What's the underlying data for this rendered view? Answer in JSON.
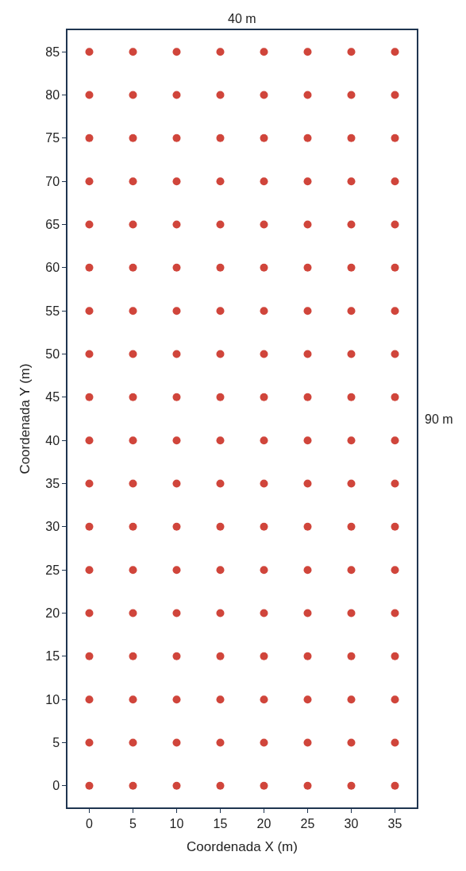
{
  "chart_data": {
    "type": "scatter",
    "xlabel": "Coordenada X (m)",
    "ylabel": "Coordenada Y (m)",
    "annotations": [
      "40 m",
      "90 m"
    ],
    "xlim": [
      -2.5,
      37.5
    ],
    "xticks": [
      0,
      5,
      10,
      15,
      20,
      25,
      30,
      35
    ],
    "ylim": [
      -2.5,
      87.5
    ],
    "yticks": [
      0,
      5,
      10,
      15,
      20,
      25,
      30,
      35,
      40,
      45,
      50,
      55,
      60,
      65,
      70,
      75,
      80,
      85
    ],
    "marker": "circle",
    "series": [
      {
        "color": "#d0453b",
        "x": [
          0,
          5,
          10,
          15,
          20,
          25,
          30,
          35,
          0,
          5,
          10,
          15,
          20,
          25,
          30,
          35,
          0,
          5,
          10,
          15,
          20,
          25,
          30,
          35,
          0,
          5,
          10,
          15,
          20,
          25,
          30,
          35,
          0,
          5,
          10,
          15,
          20,
          25,
          30,
          35,
          0,
          5,
          10,
          15,
          20,
          25,
          30,
          35,
          0,
          5,
          10,
          15,
          20,
          25,
          30,
          35,
          0,
          5,
          10,
          15,
          20,
          25,
          30,
          35,
          0,
          5,
          10,
          15,
          20,
          25,
          30,
          35,
          0,
          5,
          10,
          15,
          20,
          25,
          30,
          35,
          0,
          5,
          10,
          15,
          20,
          25,
          30,
          35,
          0,
          5,
          10,
          15,
          20,
          25,
          30,
          35,
          0,
          5,
          10,
          15,
          20,
          25,
          30,
          35,
          0,
          5,
          10,
          15,
          20,
          25,
          30,
          35,
          0,
          5,
          10,
          15,
          20,
          25,
          30,
          35,
          0,
          5,
          10,
          15,
          20,
          25,
          30,
          35,
          0,
          5,
          10,
          15,
          20,
          25,
          30,
          35,
          0,
          5,
          10,
          15,
          20,
          25,
          30,
          35
        ],
        "values": [
          85,
          85,
          85,
          85,
          85,
          85,
          85,
          85,
          80,
          80,
          80,
          80,
          80,
          80,
          80,
          80,
          75,
          75,
          75,
          75,
          75,
          75,
          75,
          75,
          70,
          70,
          70,
          70,
          70,
          70,
          70,
          70,
          65,
          65,
          65,
          65,
          65,
          65,
          65,
          65,
          60,
          60,
          60,
          60,
          60,
          60,
          60,
          60,
          55,
          55,
          55,
          55,
          55,
          55,
          55,
          55,
          50,
          50,
          50,
          50,
          50,
          50,
          50,
          50,
          45,
          45,
          45,
          45,
          45,
          45,
          45,
          45,
          40,
          40,
          40,
          40,
          40,
          40,
          40,
          40,
          35,
          35,
          35,
          35,
          35,
          35,
          35,
          35,
          30,
          30,
          30,
          30,
          30,
          30,
          30,
          30,
          25,
          25,
          25,
          25,
          25,
          25,
          25,
          25,
          20,
          20,
          20,
          20,
          20,
          20,
          20,
          20,
          15,
          15,
          15,
          15,
          15,
          15,
          15,
          15,
          10,
          10,
          10,
          10,
          10,
          10,
          10,
          10,
          5,
          5,
          5,
          5,
          5,
          5,
          5,
          5,
          0,
          0,
          0,
          0,
          0,
          0,
          0,
          0
        ]
      }
    ]
  }
}
